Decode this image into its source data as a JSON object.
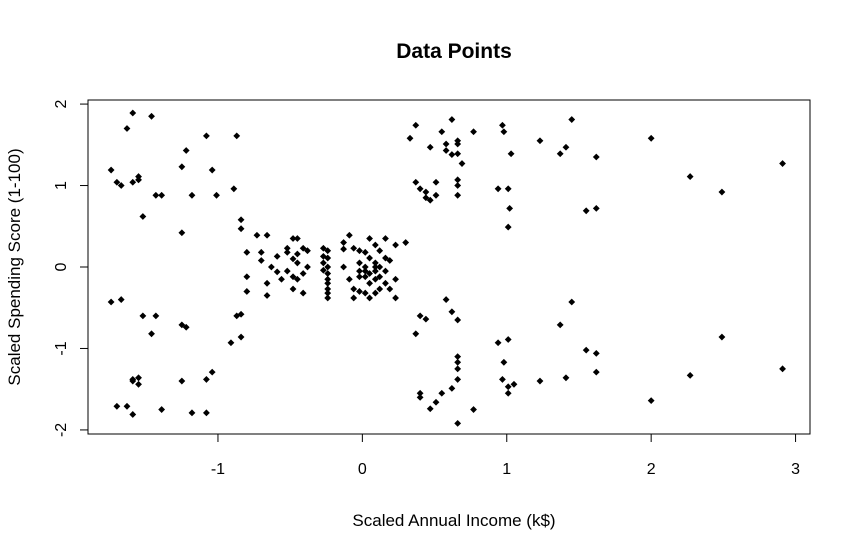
{
  "chart_data": {
    "type": "scatter",
    "title": "Data Points",
    "xlabel": "Scaled Annual Income (k$)",
    "ylabel": "Scaled Spending Score (1-100)",
    "xlim": [
      -1.9,
      3.1
    ],
    "ylim": [
      -2.05,
      2.05
    ],
    "xticks": [
      -1,
      0,
      1,
      2,
      3
    ],
    "yticks": [
      -2,
      -1,
      0,
      1,
      2
    ],
    "xtick_labels": [
      "-1",
      "0",
      "1",
      "2",
      "3"
    ],
    "ytick_labels": [
      "-2",
      "-1",
      "0",
      "1",
      "2"
    ],
    "grid": false,
    "legend": "none",
    "marker_color": "#000000",
    "points": [
      [
        -1.74,
        1.19
      ],
      [
        -1.7,
        1.04
      ],
      [
        -1.67,
        1.0
      ],
      [
        -1.59,
        1.04
      ],
      [
        -1.55,
        1.11
      ],
      [
        -1.55,
        1.07
      ],
      [
        -1.52,
        0.62
      ],
      [
        -1.59,
        1.89
      ],
      [
        -1.63,
        1.7
      ],
      [
        -1.46,
        1.85
      ],
      [
        -1.43,
        0.88
      ],
      [
        -1.39,
        0.88
      ],
      [
        -1.25,
        1.23
      ],
      [
        -1.22,
        1.43
      ],
      [
        -1.18,
        0.88
      ],
      [
        -1.08,
        1.61
      ],
      [
        -1.04,
        1.19
      ],
      [
        -1.01,
        0.88
      ],
      [
        -0.89,
        0.96
      ],
      [
        -0.87,
        1.61
      ],
      [
        -1.25,
        0.42
      ],
      [
        -1.74,
        -0.43
      ],
      [
        -1.67,
        -0.4
      ],
      [
        -1.52,
        -0.6
      ],
      [
        -1.43,
        -0.6
      ],
      [
        -1.46,
        -0.82
      ],
      [
        -1.25,
        -0.71
      ],
      [
        -1.22,
        -0.74
      ],
      [
        -0.91,
        -0.93
      ],
      [
        -0.87,
        -0.6
      ],
      [
        -0.84,
        -0.58
      ],
      [
        -0.84,
        -0.86
      ],
      [
        -0.8,
        -0.3
      ],
      [
        -1.7,
        -1.71
      ],
      [
        -1.63,
        -1.71
      ],
      [
        -1.59,
        -1.81
      ],
      [
        -1.59,
        -1.4
      ],
      [
        -1.55,
        -1.36
      ],
      [
        -1.55,
        -1.44
      ],
      [
        -1.59,
        -1.38
      ],
      [
        -1.39,
        -1.75
      ],
      [
        -1.25,
        -1.4
      ],
      [
        -1.18,
        -1.79
      ],
      [
        -1.08,
        -1.79
      ],
      [
        -1.08,
        -1.38
      ],
      [
        -1.04,
        -1.29
      ],
      [
        -0.84,
        0.58
      ],
      [
        -0.84,
        0.47
      ],
      [
        -0.8,
        0.18
      ],
      [
        -0.8,
        -0.12
      ],
      [
        -0.73,
        0.39
      ],
      [
        -0.7,
        0.08
      ],
      [
        -0.66,
        0.39
      ],
      [
        -0.7,
        0.18
      ],
      [
        -0.66,
        -0.2
      ],
      [
        -0.66,
        -0.35
      ],
      [
        -0.63,
        0.0
      ],
      [
        -0.59,
        0.13
      ],
      [
        -0.59,
        -0.06
      ],
      [
        -0.56,
        -0.15
      ],
      [
        -0.52,
        0.23
      ],
      [
        -0.52,
        0.18
      ],
      [
        -0.52,
        -0.05
      ],
      [
        -0.48,
        0.35
      ],
      [
        -0.48,
        0.1
      ],
      [
        -0.48,
        -0.12
      ],
      [
        -0.48,
        -0.27
      ],
      [
        -0.45,
        0.35
      ],
      [
        -0.45,
        0.16
      ],
      [
        -0.45,
        0.05
      ],
      [
        -0.41,
        -0.08
      ],
      [
        -0.45,
        -0.15
      ],
      [
        -0.41,
        0.23
      ],
      [
        -0.41,
        -0.32
      ],
      [
        -0.38,
        0.2
      ],
      [
        -0.38,
        0.0
      ],
      [
        -0.27,
        0.23
      ],
      [
        -0.27,
        0.13
      ],
      [
        -0.27,
        0.05
      ],
      [
        -0.27,
        -0.04
      ],
      [
        -0.24,
        0.2
      ],
      [
        -0.24,
        0.0
      ],
      [
        -0.24,
        -0.08
      ],
      [
        -0.24,
        -0.15
      ],
      [
        -0.24,
        -0.2
      ],
      [
        -0.24,
        -0.27
      ],
      [
        -0.24,
        -0.32
      ],
      [
        -0.24,
        -0.38
      ],
      [
        -0.24,
        0.11
      ],
      [
        -0.13,
        0.3
      ],
      [
        -0.13,
        0.22
      ],
      [
        -0.13,
        0.0
      ],
      [
        -0.09,
        0.39
      ],
      [
        -0.09,
        -0.15
      ],
      [
        -0.06,
        0.23
      ],
      [
        -0.06,
        -0.38
      ],
      [
        -0.06,
        -0.27
      ],
      [
        -0.02,
        0.2
      ],
      [
        -0.02,
        0.05
      ],
      [
        -0.02,
        -0.05
      ],
      [
        -0.02,
        -0.12
      ],
      [
        -0.02,
        -0.3
      ],
      [
        0.02,
        0.18
      ],
      [
        0.02,
        0.0
      ],
      [
        0.02,
        -0.05
      ],
      [
        0.02,
        -0.12
      ],
      [
        0.02,
        -0.32
      ],
      [
        0.05,
        0.35
      ],
      [
        0.05,
        0.11
      ],
      [
        0.05,
        -0.08
      ],
      [
        0.05,
        -0.2
      ],
      [
        0.05,
        -0.38
      ],
      [
        0.09,
        0.27
      ],
      [
        0.09,
        0.05
      ],
      [
        0.09,
        0.0
      ],
      [
        0.09,
        -0.05
      ],
      [
        0.09,
        -0.15
      ],
      [
        0.09,
        -0.32
      ],
      [
        0.12,
        0.2
      ],
      [
        0.12,
        0.0
      ],
      [
        0.12,
        -0.12
      ],
      [
        0.12,
        -0.27
      ],
      [
        0.16,
        0.35
      ],
      [
        0.16,
        -0.05
      ],
      [
        0.16,
        -0.2
      ],
      [
        0.16,
        0.11
      ],
      [
        0.19,
        0.08
      ],
      [
        0.19,
        -0.27
      ],
      [
        0.23,
        0.27
      ],
      [
        0.23,
        -0.15
      ],
      [
        0.23,
        -0.38
      ],
      [
        0.3,
        0.3
      ],
      [
        0.33,
        1.58
      ],
      [
        0.37,
        1.74
      ],
      [
        0.37,
        1.04
      ],
      [
        0.4,
        0.96
      ],
      [
        0.44,
        0.85
      ],
      [
        0.44,
        0.92
      ],
      [
        0.47,
        0.82
      ],
      [
        0.47,
        1.47
      ],
      [
        0.51,
        0.88
      ],
      [
        0.51,
        1.04
      ],
      [
        0.55,
        1.66
      ],
      [
        0.58,
        1.43
      ],
      [
        0.58,
        1.51
      ],
      [
        0.62,
        1.81
      ],
      [
        0.62,
        1.38
      ],
      [
        0.66,
        1.55
      ],
      [
        0.66,
        1.51
      ],
      [
        0.66,
        1.39
      ],
      [
        0.66,
        1.07
      ],
      [
        0.66,
        1.0
      ],
      [
        0.66,
        0.88
      ],
      [
        0.69,
        1.27
      ],
      [
        0.77,
        1.66
      ],
      [
        0.94,
        0.96
      ],
      [
        0.97,
        1.74
      ],
      [
        0.98,
        1.66
      ],
      [
        1.01,
        0.96
      ],
      [
        1.03,
        1.39
      ],
      [
        1.02,
        0.72
      ],
      [
        1.01,
        0.49
      ],
      [
        1.23,
        1.55
      ],
      [
        1.37,
        1.39
      ],
      [
        1.41,
        1.47
      ],
      [
        1.45,
        1.81
      ],
      [
        1.55,
        0.69
      ],
      [
        1.62,
        1.35
      ],
      [
        1.62,
        0.72
      ],
      [
        2.0,
        1.58
      ],
      [
        2.27,
        1.11
      ],
      [
        2.49,
        0.92
      ],
      [
        2.91,
        1.27
      ],
      [
        0.37,
        -0.82
      ],
      [
        0.4,
        -0.6
      ],
      [
        0.44,
        -0.64
      ],
      [
        0.58,
        -0.4
      ],
      [
        0.62,
        -0.55
      ],
      [
        0.66,
        -0.65
      ],
      [
        0.94,
        -0.93
      ],
      [
        1.01,
        -0.89
      ],
      [
        0.66,
        -1.1
      ],
      [
        0.66,
        -1.17
      ],
      [
        0.66,
        -1.25
      ],
      [
        0.66,
        -1.38
      ],
      [
        0.62,
        -1.49
      ],
      [
        0.98,
        -1.17
      ],
      [
        0.97,
        -1.38
      ],
      [
        1.01,
        -1.47
      ],
      [
        1.01,
        -1.55
      ],
      [
        1.05,
        -1.44
      ],
      [
        0.77,
        -1.75
      ],
      [
        0.66,
        -1.92
      ],
      [
        0.55,
        -1.55
      ],
      [
        0.51,
        -1.66
      ],
      [
        0.47,
        -1.74
      ],
      [
        0.4,
        -1.55
      ],
      [
        0.4,
        -1.6
      ],
      [
        1.23,
        -1.4
      ],
      [
        1.37,
        -0.71
      ],
      [
        1.45,
        -0.43
      ],
      [
        1.41,
        -1.36
      ],
      [
        1.55,
        -1.02
      ],
      [
        1.62,
        -1.06
      ],
      [
        1.62,
        -1.29
      ],
      [
        2.0,
        -1.64
      ],
      [
        2.27,
        -1.33
      ],
      [
        2.49,
        -0.86
      ],
      [
        2.91,
        -1.25
      ]
    ]
  }
}
